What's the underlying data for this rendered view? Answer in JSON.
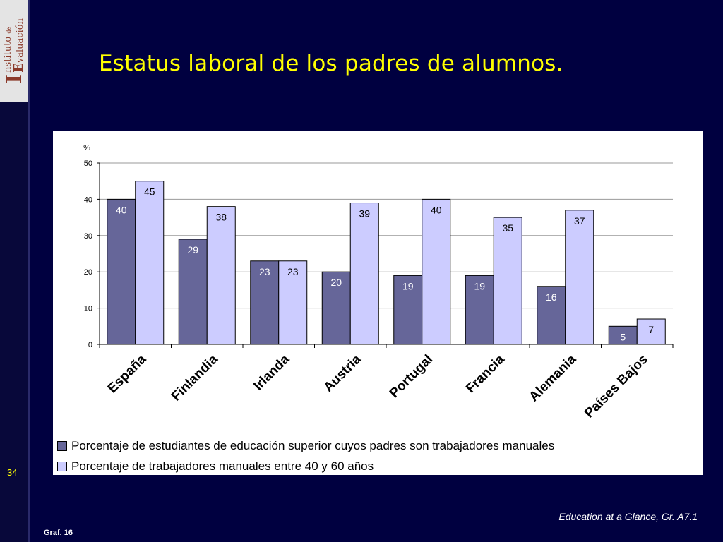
{
  "logo": {
    "letter_i": "I",
    "letter_e": "E",
    "word_1": "nstituto",
    "word_de": "de",
    "word_2": "valuación"
  },
  "slide": {
    "title": "Estatus laboral de los padres de alumnos.",
    "number": "34",
    "graf_label": "Graf. 16",
    "source": "Education at a Glance, Gr. A7.1"
  },
  "chart_data": {
    "type": "bar",
    "ylabel": "%",
    "ylim": [
      0,
      50
    ],
    "yticks": [
      0,
      10,
      20,
      30,
      40,
      50
    ],
    "grid": true,
    "legend_position": "bottom",
    "categories": [
      "España",
      "Finlandia",
      "Irlanda",
      "Austria",
      "Portugal",
      "Francia",
      "Alemania",
      "Países Bajos"
    ],
    "series": [
      {
        "name": "Porcentaje de estudiantes de educación superior cuyos padres son trabajadores manuales",
        "color": "#666699",
        "label_color": "#ffffff",
        "values": [
          40,
          29,
          23,
          20,
          19,
          19,
          16,
          5
        ]
      },
      {
        "name": "Porcentaje de trabajadores manuales entre 40 y 60 años",
        "color": "#ccccff",
        "label_color": "#000000",
        "values": [
          45,
          38,
          23,
          39,
          40,
          35,
          37,
          7
        ]
      }
    ]
  }
}
